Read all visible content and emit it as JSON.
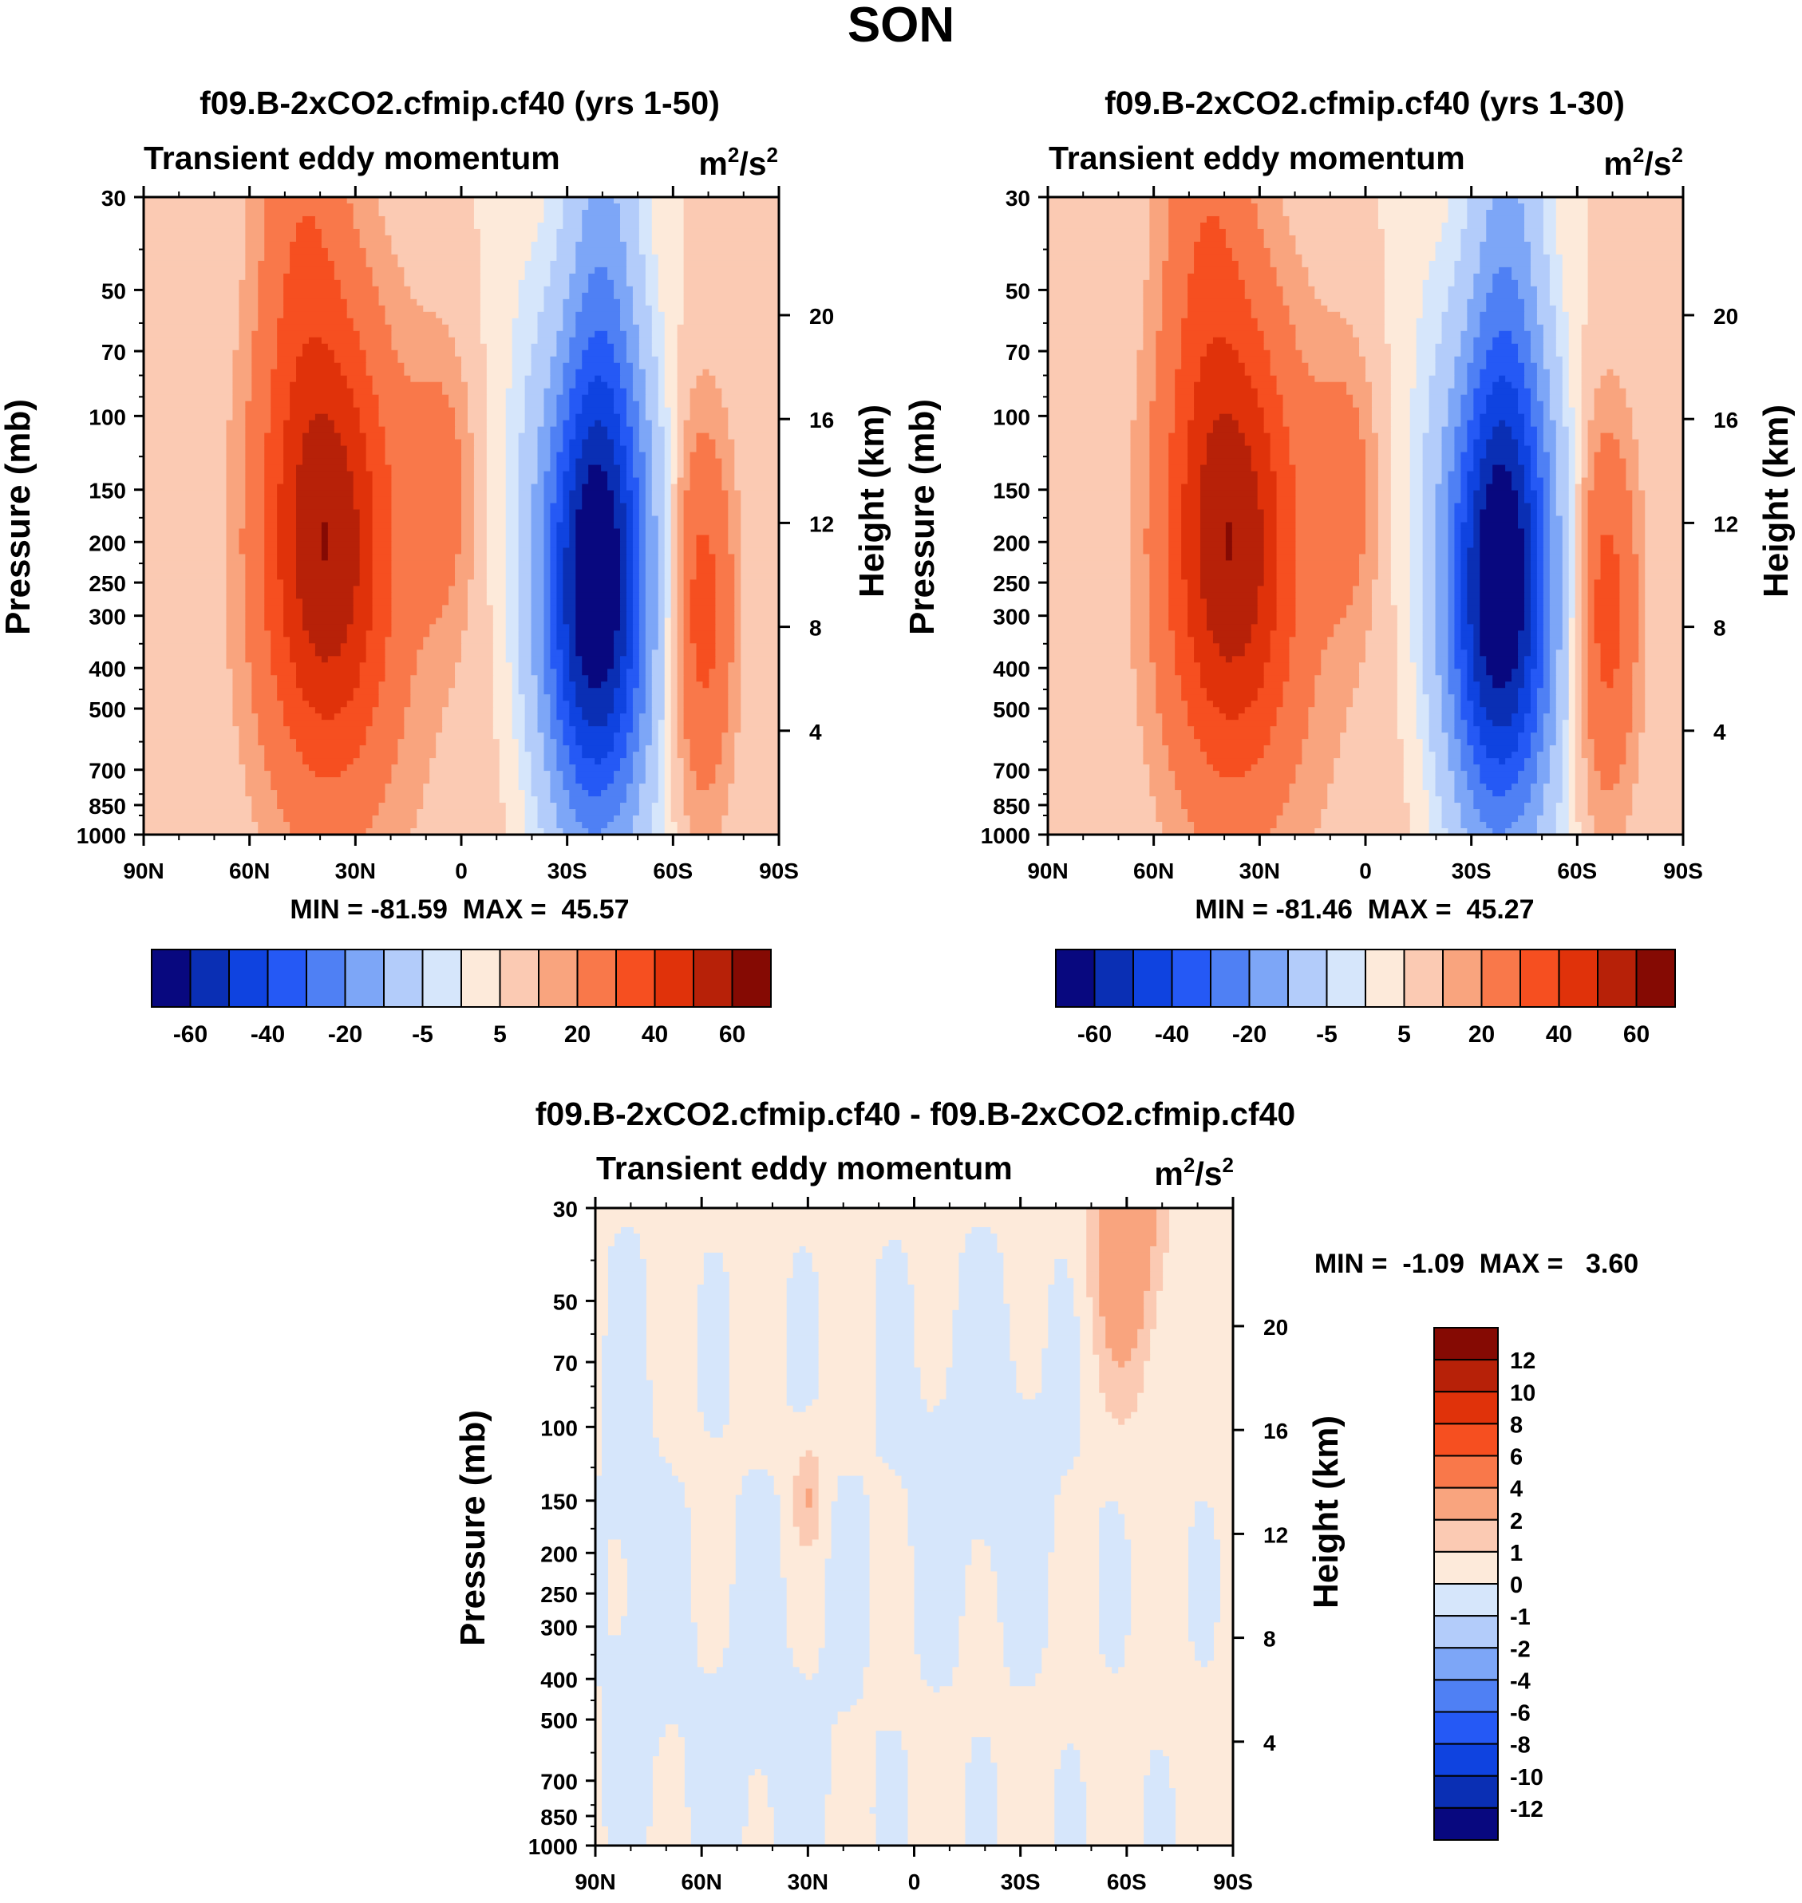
{
  "figure": {
    "title": "SON"
  },
  "colors": {
    "abs_levels": [
      "#08087f",
      "#0a2fb4",
      "#0f43e0",
      "#2559f5",
      "#4f80f4",
      "#7da6f7",
      "#b3ccfa",
      "#d6e6fb",
      "#fdeada",
      "#fbcab3",
      "#f9a47e",
      "#f9784a",
      "#f64f20",
      "#e0320a",
      "#b72108",
      "#850a03"
    ],
    "diff_levels": [
      "#08087f",
      "#0a2fb4",
      "#0f43e0",
      "#2559f5",
      "#4f80f4",
      "#7da6f7",
      "#b3ccfa",
      "#d6e6fb",
      "#fdeada",
      "#fbcab3",
      "#f9a47e",
      "#f9784a",
      "#f64f20",
      "#e0320a",
      "#b72108",
      "#850a03"
    ]
  },
  "chart_data": [
    {
      "type": "heatmap",
      "title": "f09.B-2xCO2.cfmip.cf40 (yrs 1-50)",
      "subtitle": "Transient eddy momentum",
      "units": "m²/s²",
      "ylabel": "Pressure (mb)",
      "ylabel_right": "Height (km)",
      "x_ticks": [
        "90N",
        "60N",
        "30N",
        "0",
        "30S",
        "60S",
        "90S"
      ],
      "y_ticks": [
        30,
        50,
        70,
        100,
        150,
        200,
        250,
        300,
        400,
        500,
        700,
        850,
        1000
      ],
      "y_ticks_right": [
        20,
        16,
        12,
        8,
        4
      ],
      "ylim": [
        1000,
        30
      ],
      "min_max_text": "MIN = -81.59  MAX =  45.57",
      "colorbar_labels": [
        "-60",
        "-40",
        "-20",
        "-5",
        "5",
        "20",
        "40",
        "60"
      ],
      "features": [
        {
          "lat": 38,
          "p": 200,
          "peak": 45.57
        },
        {
          "lat": 5,
          "p": 155,
          "peak": 8
        },
        {
          "lat": -38,
          "p": 270,
          "peak": -81.59
        },
        {
          "lat": -68,
          "p": 290,
          "peak": 25
        }
      ]
    },
    {
      "type": "heatmap",
      "title": "f09.B-2xCO2.cfmip.cf40 (yrs 1-30)",
      "subtitle": "Transient eddy momentum",
      "units": "m²/s²",
      "ylabel": "Pressure (mb)",
      "ylabel_right": "Height (km)",
      "x_ticks": [
        "90N",
        "60N",
        "30N",
        "0",
        "30S",
        "60S",
        "90S"
      ],
      "y_ticks": [
        30,
        50,
        70,
        100,
        150,
        200,
        250,
        300,
        400,
        500,
        700,
        850,
        1000
      ],
      "y_ticks_right": [
        20,
        16,
        12,
        8,
        4
      ],
      "ylim": [
        1000,
        30
      ],
      "min_max_text": "MIN = -81.46  MAX =  45.27",
      "colorbar_labels": [
        "-60",
        "-40",
        "-20",
        "-5",
        "5",
        "20",
        "40",
        "60"
      ],
      "features": [
        {
          "lat": 38,
          "p": 200,
          "peak": 45.27
        },
        {
          "lat": 5,
          "p": 155,
          "peak": 8
        },
        {
          "lat": -38,
          "p": 270,
          "peak": -81.46
        },
        {
          "lat": -68,
          "p": 290,
          "peak": 25
        }
      ]
    },
    {
      "type": "heatmap",
      "title": "f09.B-2xCO2.cfmip.cf40 - f09.B-2xCO2.cfmip.cf40",
      "subtitle": "Transient eddy momentum",
      "units": "m²/s²",
      "ylabel": "Pressure (mb)",
      "ylabel_right": "Height (km)",
      "x_ticks": [
        "90N",
        "60N",
        "30N",
        "0",
        "30S",
        "60S",
        "90S"
      ],
      "y_ticks": [
        30,
        50,
        70,
        100,
        150,
        200,
        250,
        300,
        400,
        500,
        700,
        850,
        1000
      ],
      "y_ticks_right": [
        20,
        16,
        12,
        8,
        4
      ],
      "ylim": [
        1000,
        30
      ],
      "min_max_text": "MIN =  -1.09  MAX =   3.60",
      "colorbar_labels": [
        "12",
        "10",
        "8",
        "6",
        "4",
        "2",
        "1",
        "0",
        "-1",
        "-2",
        "-4",
        "-6",
        "-8",
        "-10",
        "-12"
      ],
      "features": [
        {
          "lat": -60,
          "p": 40,
          "peak": 3.6
        },
        {
          "lat": 30,
          "p": 150,
          "peak": 2.0
        }
      ]
    }
  ]
}
